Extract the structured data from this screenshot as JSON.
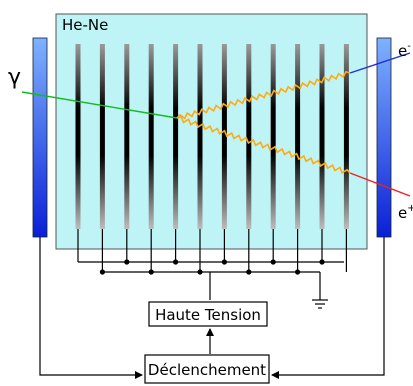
{
  "chamber_label": "He-Ne",
  "gamma_label": "γ",
  "electron_label": "e",
  "electron_sup": "-",
  "positron_label": "e",
  "positron_sup": "+",
  "hv_label": "Haute Tension",
  "trigger_label": "Déclenchement",
  "colors": {
    "chamber_fill": "#bff4f7",
    "gamma_track": "#11bb22",
    "electron_track": "#2233cc",
    "positron_track": "#ee2222",
    "spark": "#ffaa11",
    "scintillator_top": "#7fb2ff",
    "scintillator_bottom": "#0a1fd6"
  },
  "plate_count": 12
}
